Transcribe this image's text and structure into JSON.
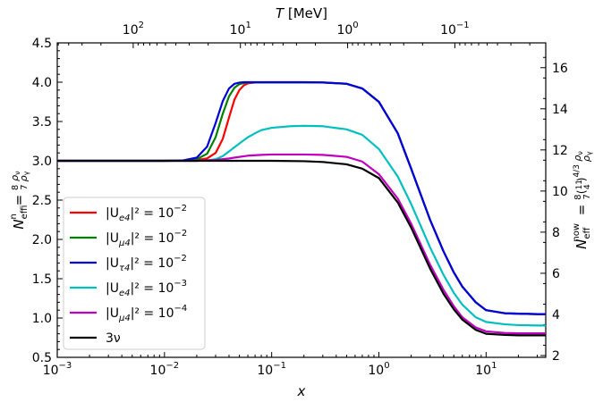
{
  "chart_data": {
    "type": "line",
    "xscale": "log",
    "xlim": [
      0.001,
      36
    ],
    "ylim": [
      0.5,
      4.5
    ],
    "xlabel": "x",
    "ylabel": "N_eff^in = (8/7) ρν/ργ",
    "ylabel_right": "N_eff^now = (8/7)(11/4)^(4/3) ρν/ργ",
    "top_xlabel": "T [MeV]",
    "x_ticks": [
      0.001,
      0.01,
      0.1,
      1,
      10
    ],
    "x_tick_labels": [
      [
        "10",
        "-3"
      ],
      [
        "10",
        "-2"
      ],
      [
        "10",
        "-1"
      ],
      [
        "10",
        "0"
      ],
      [
        "10",
        "1"
      ]
    ],
    "y_ticks": [
      0.5,
      1.0,
      1.5,
      2.0,
      2.5,
      3.0,
      3.5,
      4.0,
      4.5
    ],
    "y_tick_labels": [
      "0.5",
      "1.0",
      "1.5",
      "2.0",
      "2.5",
      "3.0",
      "3.5",
      "4.0",
      "4.5"
    ],
    "top_ticks_x": [
      0.00511,
      0.0511,
      0.511,
      5.11
    ],
    "top_tick_labels": [
      [
        "10",
        "2"
      ],
      [
        "10",
        "1"
      ],
      [
        "10",
        "0"
      ],
      [
        "10",
        "-1"
      ]
    ],
    "right_ticks": [
      2,
      4,
      6,
      8,
      10,
      12,
      14,
      16
    ],
    "right_tick_labels": [
      "2",
      "4",
      "6",
      "8",
      "10",
      "12",
      "14",
      "16"
    ],
    "right_conversion_factor": 3.8237,
    "legend_position": "lower-left",
    "series": [
      {
        "name": "|Ue4|^2 = 10^-2",
        "label_main": "|U",
        "label_sub": "e4",
        "label_rest": "|² = 10",
        "label_sup": "−2",
        "color": "#ff0000",
        "x": [
          0.001,
          0.005,
          0.01,
          0.015,
          0.02,
          0.025,
          0.03,
          0.035,
          0.04,
          0.045,
          0.05,
          0.055,
          0.06,
          0.07,
          0.08,
          0.1,
          0.15,
          0.2,
          0.3,
          0.5,
          0.7,
          1,
          1.5,
          2,
          3,
          4,
          5,
          6,
          8,
          10,
          15,
          20,
          30,
          36
        ],
        "values": [
          3.0,
          3.0,
          3.0,
          3.003,
          3.01,
          3.03,
          3.1,
          3.28,
          3.55,
          3.78,
          3.9,
          3.96,
          3.985,
          3.995,
          3.997,
          3.997,
          3.997,
          3.997,
          3.995,
          3.98,
          3.92,
          3.75,
          3.35,
          2.9,
          2.25,
          1.85,
          1.58,
          1.4,
          1.2,
          1.1,
          1.06,
          1.055,
          1.05,
          1.05
        ]
      },
      {
        "name": "|Uμ4|^2 = 10^-2",
        "label_main": "|U",
        "label_sub": "μ4",
        "label_rest": "|² = 10",
        "label_sup": "−2",
        "color": "#008000",
        "x": [
          0.001,
          0.005,
          0.01,
          0.015,
          0.02,
          0.025,
          0.03,
          0.035,
          0.04,
          0.045,
          0.05,
          0.055,
          0.06,
          0.07,
          0.08,
          0.1,
          0.15,
          0.2,
          0.3,
          0.5,
          0.7,
          1,
          1.5,
          2,
          3,
          4,
          5,
          6,
          8,
          10,
          15,
          20,
          30,
          36
        ],
        "values": [
          3.0,
          3.0,
          3.0,
          3.004,
          3.02,
          3.09,
          3.3,
          3.6,
          3.82,
          3.93,
          3.975,
          3.99,
          3.995,
          3.997,
          3.997,
          3.997,
          3.997,
          3.997,
          3.995,
          3.98,
          3.92,
          3.75,
          3.35,
          2.9,
          2.25,
          1.85,
          1.58,
          1.4,
          1.2,
          1.1,
          1.06,
          1.055,
          1.05,
          1.05
        ]
      },
      {
        "name": "|Uτ4|^2 = 10^-2",
        "label_main": "|U",
        "label_sub": "τ4",
        "label_rest": "|² = 10",
        "label_sup": "−2",
        "color": "#0000dd",
        "x": [
          0.001,
          0.005,
          0.01,
          0.015,
          0.02,
          0.025,
          0.03,
          0.035,
          0.04,
          0.045,
          0.05,
          0.055,
          0.06,
          0.07,
          0.08,
          0.1,
          0.15,
          0.2,
          0.3,
          0.5,
          0.7,
          1,
          1.5,
          2,
          3,
          4,
          5,
          6,
          8,
          10,
          15,
          20,
          30,
          36
        ],
        "values": [
          3.0,
          3.0,
          3.0,
          3.006,
          3.04,
          3.18,
          3.48,
          3.76,
          3.92,
          3.98,
          3.995,
          4.0,
          4.0,
          4.0,
          4.0,
          4.0,
          4.0,
          4.0,
          3.997,
          3.98,
          3.92,
          3.75,
          3.35,
          2.9,
          2.25,
          1.85,
          1.58,
          1.4,
          1.2,
          1.1,
          1.06,
          1.055,
          1.05,
          1.05
        ]
      },
      {
        "name": "|Ue4|^2 = 10^-3",
        "label_main": "|U",
        "label_sub": "e4",
        "label_rest": "|² = 10",
        "label_sup": "−3",
        "color": "#00bfbf",
        "x": [
          0.001,
          0.005,
          0.01,
          0.02,
          0.025,
          0.03,
          0.035,
          0.04,
          0.05,
          0.06,
          0.07,
          0.08,
          0.1,
          0.15,
          0.2,
          0.3,
          0.5,
          0.7,
          1,
          1.5,
          2,
          3,
          4,
          5,
          6,
          8,
          10,
          15,
          20,
          30,
          36
        ],
        "values": [
          3.0,
          3.0,
          3.0,
          3.0,
          3.005,
          3.02,
          3.06,
          3.12,
          3.22,
          3.3,
          3.35,
          3.39,
          3.42,
          3.44,
          3.445,
          3.44,
          3.4,
          3.33,
          3.15,
          2.8,
          2.45,
          1.9,
          1.55,
          1.32,
          1.17,
          1.01,
          0.95,
          0.92,
          0.91,
          0.905,
          0.905
        ]
      },
      {
        "name": "|Uμ4|^2 = 10^-4",
        "label_main": "|U",
        "label_sub": "μ4",
        "label_rest": "|² = 10",
        "label_sup": "−4",
        "color": "#bf00bf",
        "x": [
          0.001,
          0.005,
          0.01,
          0.02,
          0.03,
          0.04,
          0.05,
          0.06,
          0.08,
          0.1,
          0.15,
          0.2,
          0.3,
          0.5,
          0.7,
          1,
          1.5,
          2,
          3,
          4,
          5,
          6,
          8,
          10,
          15,
          20,
          30,
          36
        ],
        "values": [
          3.0,
          3.0,
          3.0,
          3.0,
          3.01,
          3.03,
          3.05,
          3.065,
          3.075,
          3.08,
          3.08,
          3.08,
          3.075,
          3.05,
          2.99,
          2.83,
          2.52,
          2.2,
          1.68,
          1.36,
          1.15,
          1.01,
          0.88,
          0.83,
          0.81,
          0.805,
          0.805,
          0.805
        ]
      },
      {
        "name": "3ν",
        "label_main": "3ν",
        "label_sub": "",
        "label_rest": "",
        "label_sup": "",
        "color": "#000000",
        "x": [
          0.001,
          0.005,
          0.01,
          0.02,
          0.05,
          0.1,
          0.2,
          0.3,
          0.5,
          0.7,
          1,
          1.5,
          2,
          3,
          4,
          5,
          6,
          8,
          10,
          15,
          20,
          30,
          36
        ],
        "values": [
          3.0,
          3.0,
          3.0,
          3.0,
          3.0,
          3.0,
          2.995,
          2.985,
          2.955,
          2.9,
          2.78,
          2.47,
          2.15,
          1.63,
          1.31,
          1.11,
          0.98,
          0.85,
          0.8,
          0.785,
          0.78,
          0.78,
          0.78
        ]
      }
    ]
  }
}
